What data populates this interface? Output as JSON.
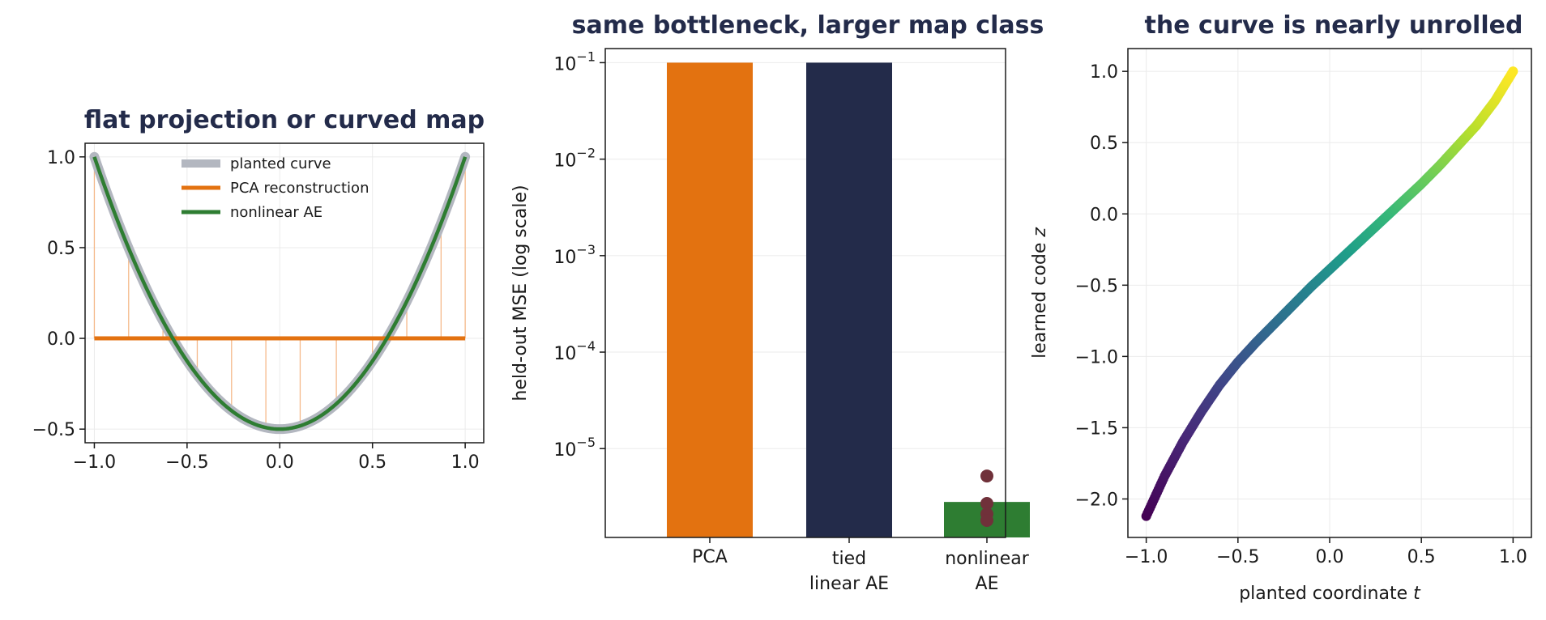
{
  "chart_data": [
    {
      "type": "line",
      "title": "flat projection or curved map",
      "xlabel": "",
      "ylabel": "",
      "xlim": [
        -1.05,
        1.1
      ],
      "ylim": [
        -0.575,
        1.075
      ],
      "x_ticks": [
        "−1.0",
        "−0.5",
        "0.0",
        "0.5",
        "1.0"
      ],
      "y_ticks": [
        "−0.5",
        "0.0",
        "0.5",
        "1.0"
      ],
      "grid": true,
      "legend_position": "top-center",
      "x": [
        -1.0,
        -0.75,
        -0.5,
        -0.25,
        0.0,
        0.25,
        0.5,
        0.75,
        1.0
      ],
      "series": [
        {
          "name": "planted curve",
          "style": "thick-light",
          "values": [
            1.0,
            0.344,
            -0.125,
            -0.406,
            -0.5,
            -0.406,
            -0.125,
            0.344,
            1.0
          ]
        },
        {
          "name": "PCA reconstruction",
          "style": "flat",
          "values": [
            0.0,
            0.0,
            0.0,
            0.0,
            0.0,
            0.0,
            0.0,
            0.0,
            0.0
          ]
        },
        {
          "name": "nonlinear AE",
          "style": "line",
          "values": [
            1.0,
            0.344,
            -0.125,
            -0.406,
            -0.5,
            -0.406,
            -0.125,
            0.344,
            1.0
          ]
        }
      ],
      "residual_x": [
        -1.0,
        -0.815,
        -0.63,
        -0.445,
        -0.26,
        -0.075,
        0.11,
        0.305,
        0.5,
        0.685,
        0.87,
        1.0
      ],
      "colors": {
        "planted": "#b3b7c0",
        "pca": "#e37210",
        "ae": "#2e7d32",
        "residual": "#f5b98a",
        "title": "#232b4a"
      }
    },
    {
      "type": "bar",
      "title": "same bottleneck, larger map class",
      "xlabel": "",
      "ylabel": "held-out MSE (log scale)",
      "log_y": true,
      "ylim": [
        1.2e-06,
        0.14
      ],
      "y_ticks": [
        {
          "value": 0.1,
          "base": "10",
          "exp": "−1"
        },
        {
          "value": 0.01,
          "base": "10",
          "exp": "−2"
        },
        {
          "value": 0.001,
          "base": "10",
          "exp": "−3"
        },
        {
          "value": 0.0001,
          "base": "10",
          "exp": "−4"
        },
        {
          "value": 1e-05,
          "base": "10",
          "exp": "−5"
        }
      ],
      "grid": true,
      "categories": [
        [
          "PCA"
        ],
        [
          "tied",
          "linear AE"
        ],
        [
          "nonlinear",
          "AE"
        ]
      ],
      "values": [
        0.1,
        0.1,
        2.8e-06
      ],
      "bar_colors": [
        "#e37210",
        "#232b4a",
        "#2e7d32"
      ],
      "seed_points": [
        5.2e-06,
        2.7e-06,
        2.1e-06,
        1.8e-06
      ],
      "seed_color": "#70313a"
    },
    {
      "type": "scatter",
      "title": "the curve is nearly unrolled",
      "xlabel": "planted coordinate",
      "xlabel_var": "t",
      "ylabel": "learned code",
      "ylabel_var": "z",
      "xlim": [
        -1.1,
        1.1
      ],
      "ylim": [
        -2.27,
        1.16
      ],
      "x_ticks": [
        "−1.0",
        "−0.5",
        "0.0",
        "0.5",
        "1.0"
      ],
      "y_ticks": [
        "1.0",
        "0.5",
        "0.0",
        "−0.5",
        "−1.0",
        "−1.5",
        "−2.0"
      ],
      "grid": true,
      "colormap": "viridis",
      "x": [
        -1.0,
        -0.9,
        -0.8,
        -0.7,
        -0.6,
        -0.5,
        -0.4,
        -0.3,
        -0.2,
        -0.1,
        0.0,
        0.1,
        0.2,
        0.3,
        0.4,
        0.5,
        0.6,
        0.7,
        0.8,
        0.9,
        1.0
      ],
      "y": [
        -2.12,
        -1.84,
        -1.6,
        -1.39,
        -1.2,
        -1.04,
        -0.9,
        -0.77,
        -0.64,
        -0.51,
        -0.39,
        -0.27,
        -0.15,
        -0.03,
        0.09,
        0.21,
        0.34,
        0.48,
        0.62,
        0.79,
        1.0
      ]
    }
  ]
}
